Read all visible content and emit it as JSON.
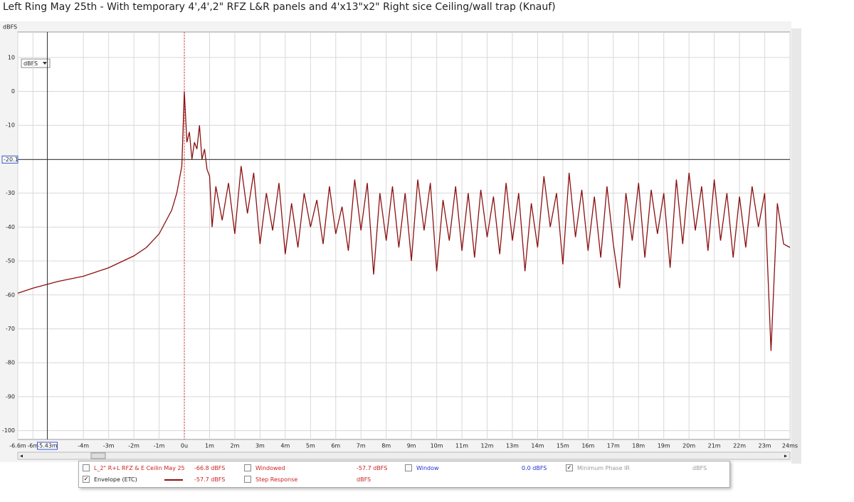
{
  "chart_data": {
    "type": "line",
    "title": "Left Ring May 25th - With temporary 4',4',2\" RFZ L&R panels and 4'x13\"x2\" Right sice Ceiling/wall trap (Knauf)",
    "y_label": "dBFS",
    "unit_selector": "dBFS",
    "xlim": [
      -6.6,
      24
    ],
    "ylim": [
      -102.6,
      17.5
    ],
    "grid": true,
    "yticks": [
      10,
      0,
      -10,
      -20,
      -30,
      -40,
      -50,
      -60,
      -70,
      -80,
      -90,
      -100
    ],
    "xticks": [
      {
        "value": -6.6,
        "label": "-6.6m"
      },
      {
        "value": -6,
        "label": "-6m"
      },
      {
        "value": -4,
        "label": "-4m"
      },
      {
        "value": -3,
        "label": "-3m"
      },
      {
        "value": -2,
        "label": "-2m"
      },
      {
        "value": -1,
        "label": "-1m"
      },
      {
        "value": 0,
        "label": "0u"
      },
      {
        "value": 1,
        "label": "1m"
      },
      {
        "value": 2,
        "label": "2m"
      },
      {
        "value": 3,
        "label": "3m"
      },
      {
        "value": 4,
        "label": "4m"
      },
      {
        "value": 5,
        "label": "5m"
      },
      {
        "value": 6,
        "label": "6m"
      },
      {
        "value": 7,
        "label": "7m"
      },
      {
        "value": 8,
        "label": "8m"
      },
      {
        "value": 9,
        "label": "9m"
      },
      {
        "value": 10,
        "label": "10m"
      },
      {
        "value": 11,
        "label": "11m"
      },
      {
        "value": 12,
        "label": "12m"
      },
      {
        "value": 13,
        "label": "13m"
      },
      {
        "value": 14,
        "label": "14m"
      },
      {
        "value": 15,
        "label": "15m"
      },
      {
        "value": 16,
        "label": "16m"
      },
      {
        "value": 17,
        "label": "17m"
      },
      {
        "value": 18,
        "label": "18m"
      },
      {
        "value": 19,
        "label": "19m"
      },
      {
        "value": 20,
        "label": "20m"
      },
      {
        "value": 21,
        "label": "21m"
      },
      {
        "value": 22,
        "label": "22m"
      },
      {
        "value": 23,
        "label": "23m"
      },
      {
        "value": 24,
        "label": "24ms"
      }
    ],
    "cursor": {
      "x": {
        "value": -5.43,
        "label": "-5.43m"
      },
      "y": -20.1
    },
    "series": [
      {
        "color": "#8b1010",
        "x": [
          -6.6,
          -6,
          -5,
          -4,
          -3,
          -2,
          -1.5,
          -1,
          -0.5,
          -0.3,
          -0.1,
          0,
          0.1,
          0.2,
          0.3,
          0.4,
          0.5,
          0.6,
          0.7,
          0.8,
          0.9,
          1.0,
          1.1,
          1.25,
          1.5,
          1.75,
          2,
          2.25,
          2.5,
          2.75,
          3,
          3.25,
          3.5,
          3.75,
          4,
          4.25,
          4.5,
          4.75,
          5,
          5.25,
          5.5,
          5.75,
          6,
          6.25,
          6.5,
          6.75,
          7,
          7.25,
          7.5,
          7.75,
          8,
          8.25,
          8.5,
          8.75,
          9,
          9.25,
          9.5,
          9.75,
          10,
          10.25,
          10.5,
          10.75,
          11,
          11.25,
          11.5,
          11.75,
          12,
          12.25,
          12.5,
          12.75,
          13,
          13.25,
          13.5,
          13.75,
          14,
          14.25,
          14.5,
          14.75,
          15,
          15.25,
          15.5,
          15.75,
          16,
          16.25,
          16.5,
          16.75,
          17,
          17.25,
          17.5,
          17.75,
          18,
          18.25,
          18.5,
          18.75,
          19,
          19.25,
          19.5,
          19.75,
          20,
          20.25,
          20.5,
          20.75,
          21,
          21.25,
          21.5,
          21.75,
          22,
          22.25,
          22.5,
          22.75,
          23,
          23.25,
          23.5,
          23.75,
          24
        ],
        "values": [
          -59.5,
          -58,
          -56,
          -54.5,
          -52,
          -48.5,
          -46,
          -42,
          -35,
          -30,
          -22,
          0,
          -15,
          -12,
          -20,
          -15,
          -17,
          -10,
          -20,
          -17,
          -23,
          -25,
          -40,
          -28,
          -38,
          -27,
          -42,
          -22,
          -36,
          -24,
          -45,
          -30,
          -41,
          -27,
          -48,
          -33,
          -46,
          -30,
          -40,
          -32,
          -45,
          -28,
          -42,
          -34,
          -47,
          -26,
          -41,
          -27,
          -54,
          -30,
          -44,
          -28,
          -46,
          -30,
          -50,
          -26,
          -41,
          -27,
          -53,
          -32,
          -44,
          -28,
          -47,
          -30,
          -49,
          -29,
          -43,
          -31,
          -48,
          -27,
          -44,
          -30,
          -53,
          -33,
          -46,
          -25,
          -40,
          -30,
          -51,
          -24,
          -43,
          -29,
          -47,
          -31,
          -49,
          -28,
          -45,
          -58,
          -30,
          -44,
          -27,
          -49,
          -29,
          -42,
          -30,
          -52,
          -26,
          -45,
          -24,
          -41,
          -28,
          -47,
          -26,
          -44,
          -30,
          -49,
          -31,
          -46,
          -28,
          -40,
          -30,
          -76.5,
          -33,
          -45,
          -46
        ]
      }
    ]
  },
  "legend_panel": {
    "rows": [
      [
        {
          "label": "L_2\" R+L RFZ & E Ceilin May 25",
          "value": "-66.8 dBFS",
          "color": "#cc2222",
          "checked": false
        },
        {
          "label": "Windowed",
          "value": "-57.7 dBFS",
          "color": "#cc2222",
          "checked": false
        },
        {
          "label": "Window",
          "value": "0.0 dBFS",
          "color": "#2233cc",
          "checked": false
        },
        {
          "label": "Minimum Phase IR",
          "value": "dBFS",
          "color": "#999999",
          "checked": true
        }
      ],
      [
        {
          "label": "Envelope (ETC)",
          "value": "-57.7 dBFS",
          "color": "#cc2222",
          "checked": true,
          "swatch": "#8b1010"
        },
        {
          "label": "Step Response",
          "value": "dBFS",
          "color": "#cc2222",
          "checked": false
        }
      ]
    ]
  }
}
